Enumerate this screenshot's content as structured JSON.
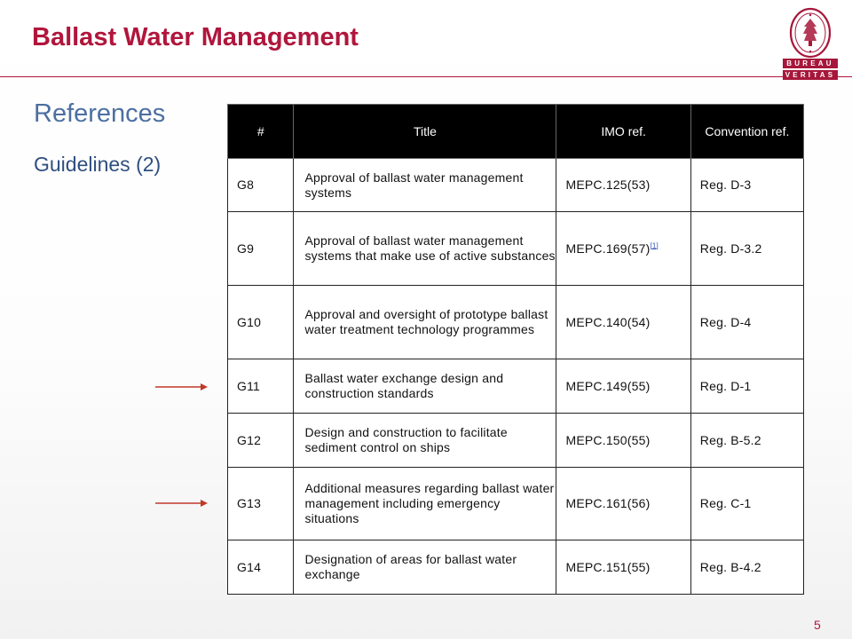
{
  "header": {
    "title": "Ballast Water Management"
  },
  "logo": {
    "top_word": "BUREAU",
    "bottom_word": "VERITAS",
    "seal_text": "BUREAU VERITAS 1828",
    "color": "#a7173b"
  },
  "section": {
    "heading": "References",
    "subheading": "Guidelines (2)"
  },
  "table": {
    "headers": [
      "#",
      "Title",
      "IMO ref.",
      "Convention ref."
    ],
    "rows": [
      {
        "num": "G8",
        "title": "Approval of ballast water management systems",
        "imo": "MEPC.125(53)",
        "footnote": "",
        "convention": "Reg. D-3"
      },
      {
        "num": "G9",
        "title": "Approval of ballast water management systems that make use of active substances",
        "imo": "MEPC.169(57)",
        "footnote": "[1]",
        "convention": "Reg. D-3.2"
      },
      {
        "num": "G10",
        "title": "Approval and oversight of prototype ballast water treatment technology programmes",
        "imo": "MEPC.140(54)",
        "footnote": "",
        "convention": "Reg. D-4"
      },
      {
        "num": "G11",
        "title": "Ballast water exchange design and construction standards",
        "imo": "MEPC.149(55)",
        "footnote": "",
        "convention": "Reg. D-1"
      },
      {
        "num": "G12",
        "title": "Design and construction to facilitate sediment control on ships",
        "imo": "MEPC.150(55)",
        "footnote": "",
        "convention": "Reg. B-5.2"
      },
      {
        "num": "G13",
        "title": "Additional measures regarding ballast water management including emergency situations",
        "imo": "MEPC.161(56)",
        "footnote": "",
        "convention": "Reg. C-1"
      },
      {
        "num": "G14",
        "title": "Designation of areas for ballast water exchange",
        "imo": "MEPC.151(55)",
        "footnote": "",
        "convention": "Reg. B-4.2"
      }
    ]
  },
  "arrows": {
    "rows": [
      "G11",
      "G13"
    ],
    "color": "#c0392b"
  },
  "footer": {
    "page_number": "5"
  },
  "colors": {
    "accent": "#b0163c",
    "heading": "#4c6fa1",
    "header_bg": "#000000"
  }
}
